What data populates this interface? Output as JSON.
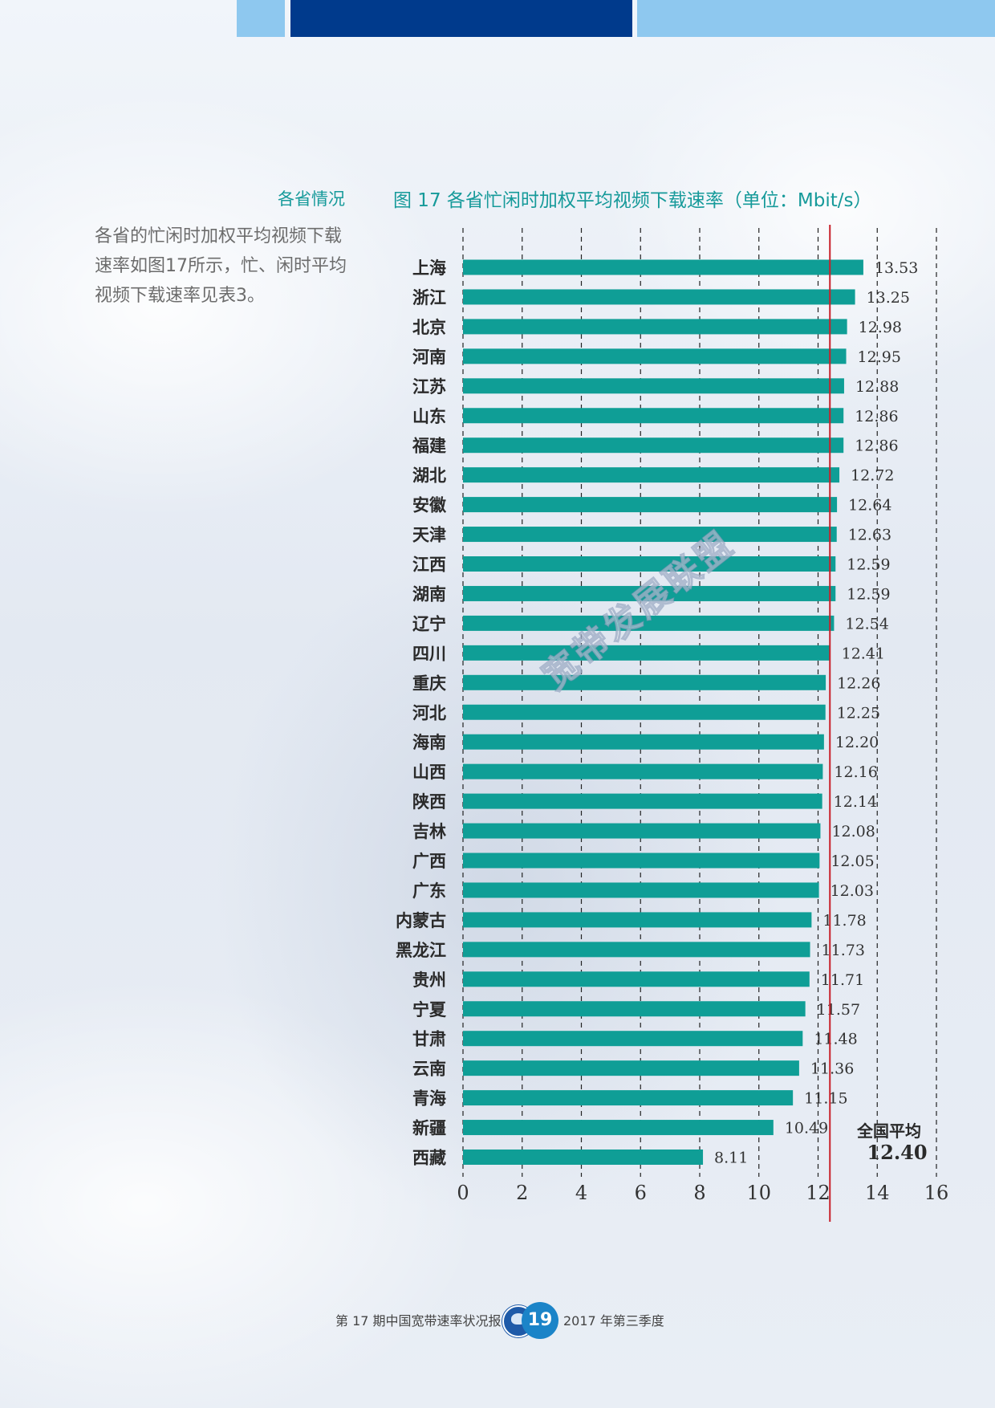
{
  "header": {
    "section_title": "各省情况",
    "intro_text": "各省的忙闲时加权平均视频下载速率如图17所示，忙、闲时平均视频下载速率见表3。"
  },
  "chart_data": {
    "type": "bar",
    "orientation": "horizontal",
    "title": "图 17 各省忙闲时加权平均视频下载速率（单位：Mbit/s）",
    "categories": [
      "上海",
      "浙江",
      "北京",
      "河南",
      "江苏",
      "山东",
      "福建",
      "湖北",
      "安徽",
      "天津",
      "江西",
      "湖南",
      "辽宁",
      "四川",
      "重庆",
      "河北",
      "海南",
      "山西",
      "陕西",
      "吉林",
      "广西",
      "广东",
      "内蒙古",
      "黑龙江",
      "贵州",
      "宁夏",
      "甘肃",
      "云南",
      "青海",
      "新疆",
      "西藏"
    ],
    "values": [
      13.53,
      13.25,
      12.98,
      12.95,
      12.88,
      12.86,
      12.86,
      12.72,
      12.64,
      12.63,
      12.59,
      12.59,
      12.54,
      12.41,
      12.26,
      12.25,
      12.2,
      12.16,
      12.14,
      12.08,
      12.05,
      12.03,
      11.78,
      11.73,
      11.71,
      11.57,
      11.48,
      11.36,
      11.15,
      10.49,
      8.11
    ],
    "value_labels": [
      "13.53",
      "13.25",
      "12.98",
      "12.95",
      "12.88",
      "12.86",
      "12.86",
      "12.72",
      "12.64",
      "12.63",
      "12.59",
      "12.59",
      "12.54",
      "12.41",
      "12.26",
      "12.25",
      "12.20",
      "12.16",
      "12.14",
      "12.08",
      "12.05",
      "12.03",
      "11.78",
      "11.73",
      "11.71",
      "11.57",
      "11.48",
      "11.36",
      "11.15",
      "10.49",
      "8.11"
    ],
    "xlim": [
      0,
      16
    ],
    "xticks": [
      "0",
      "2",
      "4",
      "6",
      "8",
      "10",
      "12",
      "14",
      "16"
    ],
    "grid": "vertical-dashed",
    "bar_color": "#0f9e96",
    "reference_line": {
      "label": "全国平均",
      "value": 12.4,
      "value_label": "12.40",
      "color": "#c8202a"
    }
  },
  "watermark": "宽带发展联盟",
  "footer": {
    "left_text": "第 17 期中国宽带速率状况报告",
    "page_number": "19",
    "right_text": "2017 年第三季度"
  }
}
